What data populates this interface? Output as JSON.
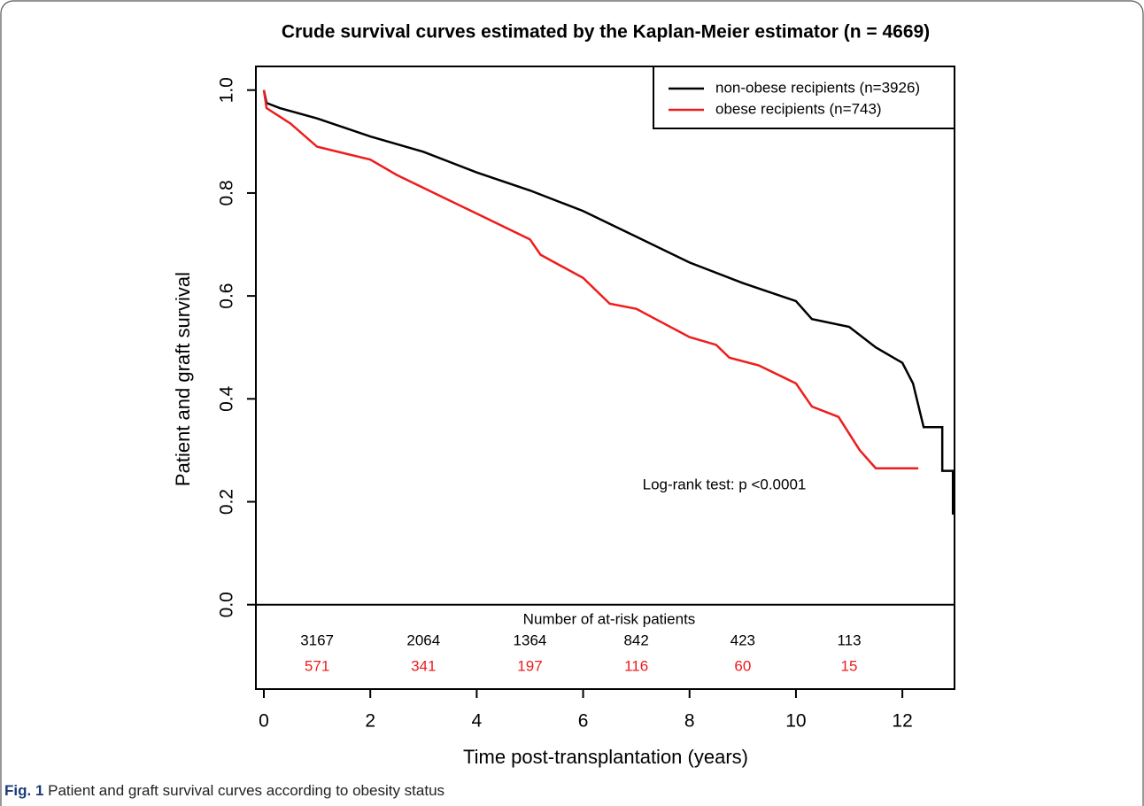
{
  "chart_data": {
    "type": "line",
    "title": "Crude survival curves estimated by the Kaplan-Meier estimator (n = 4669)",
    "x_label": "Time post-transplantation (years)",
    "y_label": "Patient and graft survival",
    "xlim": [
      -0.15,
      12.98
    ],
    "ylim": [
      -0.164,
      1.046
    ],
    "xticks": [
      0,
      2,
      4,
      6,
      8,
      10,
      12
    ],
    "yticks": [
      {
        "value": 0,
        "label": "0.0"
      },
      0.2,
      0.4,
      0.6,
      0.8,
      {
        "value": 1,
        "label": "1.0"
      }
    ],
    "legend": "top-right",
    "series": [
      {
        "name": "non-obese recipients (n=3926)",
        "color": "#000000",
        "x": [
          0,
          0.05,
          0.3,
          1,
          2,
          3,
          4,
          5,
          6,
          7,
          8,
          9,
          10,
          10.3,
          11,
          11.5,
          12,
          12.2,
          12.4,
          12.75,
          12.75,
          12.95,
          12.95
        ],
        "values": [
          1.0,
          0.975,
          0.965,
          0.945,
          0.91,
          0.88,
          0.84,
          0.805,
          0.765,
          0.715,
          0.665,
          0.625,
          0.59,
          0.555,
          0.54,
          0.5,
          0.47,
          0.43,
          0.345,
          0.345,
          0.26,
          0.26,
          0.175
        ]
      },
      {
        "name": "obese recipients (n=743)",
        "color": "#ee1c1c",
        "x": [
          0,
          0.05,
          0.5,
          1,
          2,
          2.5,
          3,
          4,
          5,
          5.2,
          6,
          6.5,
          7,
          8,
          8.5,
          8.75,
          9.3,
          10,
          10.3,
          10.8,
          11.2,
          11.5,
          12.3
        ],
        "values": [
          1.0,
          0.965,
          0.935,
          0.89,
          0.865,
          0.835,
          0.81,
          0.76,
          0.71,
          0.68,
          0.635,
          0.585,
          0.575,
          0.52,
          0.505,
          0.48,
          0.465,
          0.43,
          0.385,
          0.365,
          0.3,
          0.265,
          0.265
        ]
      }
    ],
    "annotation": "Log-rank test: p <0.0001",
    "at_risk": {
      "title": "Number of at-risk patients",
      "x": [
        1,
        3,
        5,
        7,
        9,
        11
      ],
      "rows": [
        {
          "color": "#000000",
          "values": [
            3167,
            2064,
            1364,
            842,
            423,
            113
          ]
        },
        {
          "color": "#ee1c1c",
          "values": [
            571,
            341,
            197,
            116,
            60,
            15
          ]
        }
      ]
    }
  },
  "caption": {
    "label": "Fig. 1",
    "text": "Patient and graft survival curves according to obesity status"
  }
}
